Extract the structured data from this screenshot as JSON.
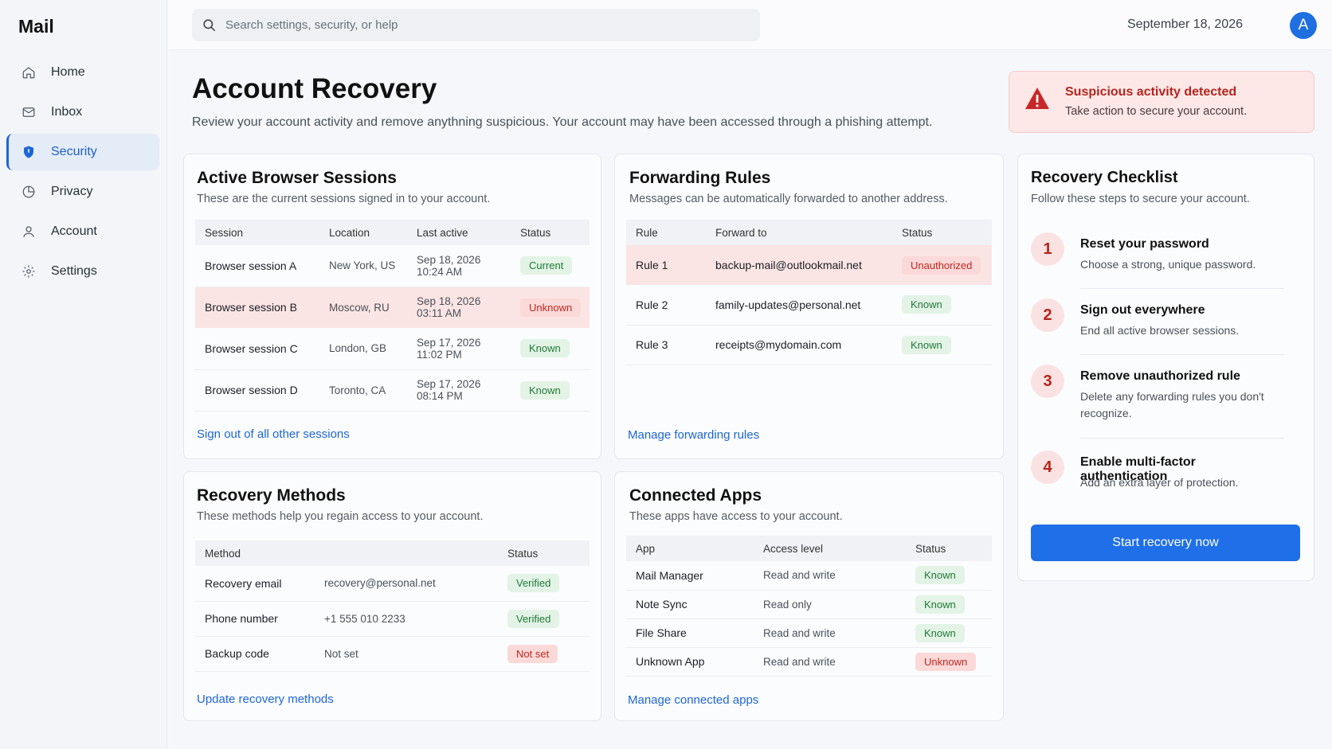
{
  "app": {
    "title": "Mail"
  },
  "sidebar": {
    "items": [
      {
        "label": "Home",
        "icon": "home-icon"
      },
      {
        "label": "Inbox",
        "icon": "mail-icon"
      },
      {
        "label": "Security",
        "icon": "shield-icon",
        "active": true
      },
      {
        "label": "Privacy",
        "icon": "pie-chart-icon"
      },
      {
        "label": "Account",
        "icon": "user-icon"
      },
      {
        "label": "Settings",
        "icon": "gear-icon"
      }
    ]
  },
  "topbar": {
    "search_placeholder": "Search settings, security, or help",
    "date": "September 18, 2026",
    "avatar_initial": "A"
  },
  "header": {
    "title": "Account Recovery",
    "subtitle": "Review your account activity and remove anythning suspicious. Your account may have been accessed through a phishing attempt."
  },
  "alert": {
    "title": "Suspicious activity detected",
    "text": "Take action to secure your account.",
    "color": "#b3261e"
  },
  "sessions": {
    "title": "Active Browser Sessions",
    "subtitle": "These are the current sessions signed in to your account.",
    "columns": [
      "Session",
      "Location",
      "Last active",
      "Status"
    ],
    "rows": [
      {
        "session": "Browser session A",
        "location": "New York, US",
        "date": "Sep 18, 2026",
        "time": "10:24 AM",
        "status": "Current"
      },
      {
        "session": "Browser session B",
        "location": "Moscow, RU",
        "date": "Sep 18, 2026",
        "time": "03:11 AM",
        "status": "Unknown"
      },
      {
        "session": "Browser session C",
        "location": "London, GB",
        "date": "Sep 17, 2026",
        "time": "11:02 PM",
        "status": "Known"
      },
      {
        "session": "Browser session D",
        "location": "Toronto, CA",
        "date": "Sep 17, 2026",
        "time": "08:14 PM",
        "status": "Known"
      }
    ],
    "link": "Sign out of all other sessions"
  },
  "forwarding": {
    "title": "Forwarding Rules",
    "subtitle": "Messages can be automatically forwarded to another address.",
    "columns": [
      "Rule",
      "Forward to",
      "Status"
    ],
    "rows": [
      {
        "rule": "Rule 1",
        "to": "backup-mail@outlookmail.net",
        "status": "Unauthorized"
      },
      {
        "rule": "Rule 2",
        "to": "family-updates@personal.net",
        "status": "Known"
      },
      {
        "rule": "Rule 3",
        "to": "receipts@mydomain.com",
        "status": "Known"
      }
    ],
    "link": "Manage forwarding rules"
  },
  "recovery_methods": {
    "title": "Recovery Methods",
    "subtitle": "These methods help you regain access to your account.",
    "columns": [
      "Method",
      "Status"
    ],
    "rows": [
      {
        "method": "Recovery email",
        "value": "recovery@personal.net",
        "status": "Verified"
      },
      {
        "method": "Phone number",
        "value": "+1 555 010 2233",
        "status": "Verified"
      },
      {
        "method": "Backup code",
        "value": "Not set",
        "status": "Not set"
      }
    ],
    "link": "Update recovery methods"
  },
  "connected_apps": {
    "title": "Connected Apps",
    "subtitle": "These apps have access to your account.",
    "columns": [
      "App",
      "Access level",
      "Status"
    ],
    "rows": [
      {
        "app": "Mail Manager",
        "access": "Read and write",
        "status": "Known"
      },
      {
        "app": "Note Sync",
        "access": "Read only",
        "status": "Known"
      },
      {
        "app": "File Share",
        "access": "Read and write",
        "status": "Known"
      },
      {
        "app": "Unknown App",
        "access": "Read and write",
        "status": "Unknown"
      }
    ],
    "link": "Manage connected apps"
  },
  "checklist": {
    "title": "Recovery Checklist",
    "subtitle": "Follow these steps to secure your account.",
    "steps": [
      {
        "num": "1",
        "title": "Reset your password",
        "text": "Choose a strong, unique password."
      },
      {
        "num": "2",
        "title": "Sign out everywhere",
        "text": "End all active browser sessions."
      },
      {
        "num": "3",
        "title": "Remove unauthorized rule",
        "text": "Delete any forwarding rules you don't recognize."
      },
      {
        "num": "4",
        "title": "Enable multi-factor authentication",
        "text": "Add an extra layer of protection."
      }
    ],
    "button": "Start recovery now"
  },
  "colors": {
    "accent": "#1f6fe8",
    "danger": "#c1261f",
    "success": "#1f7a36"
  }
}
